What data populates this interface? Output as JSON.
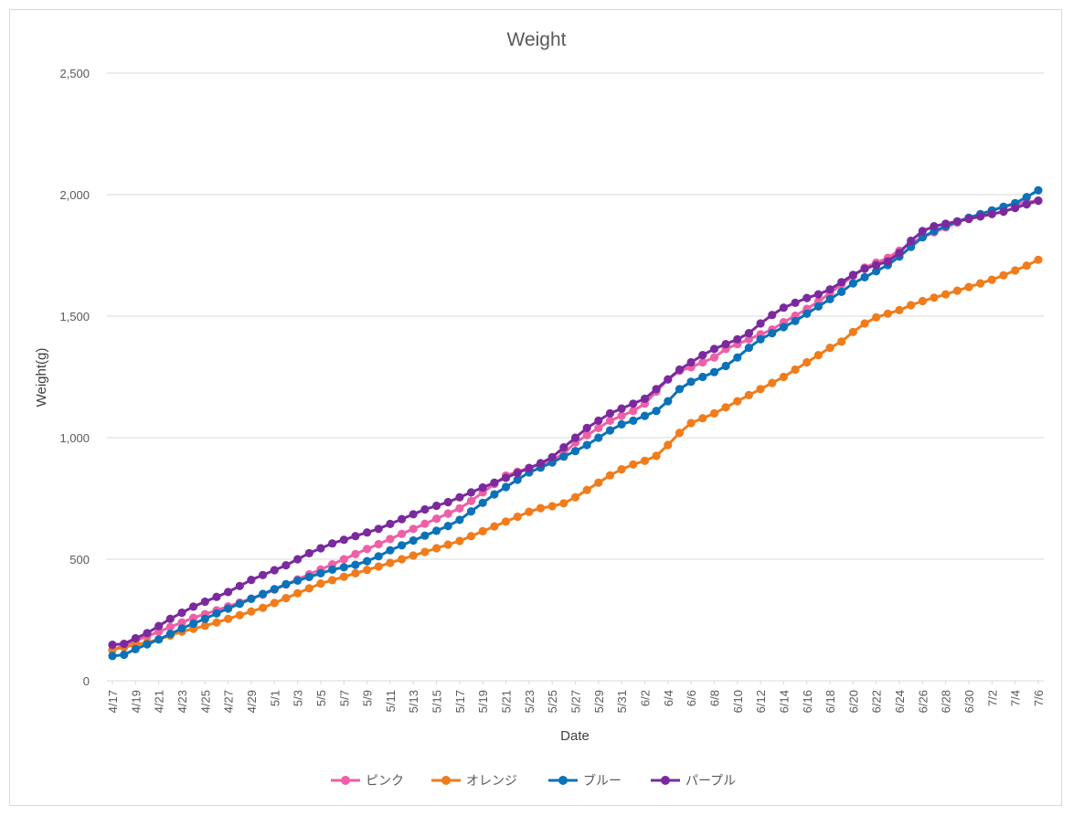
{
  "chart_data": {
    "type": "line",
    "title": "Weight",
    "xlabel": "Date",
    "ylabel": "Weight(g)",
    "ylim": [
      0,
      2500
    ],
    "yticks": [
      0,
      500,
      1000,
      1500,
      2000,
      2500
    ],
    "ytick_labels": [
      "0",
      "500",
      "1,000",
      "1,500",
      "2,000",
      "2,500"
    ],
    "grid": "horizontal",
    "legend_position": "bottom",
    "x": [
      "4/17",
      "4/18",
      "4/19",
      "4/20",
      "4/21",
      "4/22",
      "4/23",
      "4/24",
      "4/25",
      "4/26",
      "4/27",
      "4/28",
      "4/29",
      "4/30",
      "5/1",
      "5/2",
      "5/3",
      "5/4",
      "5/5",
      "5/6",
      "5/7",
      "5/8",
      "5/9",
      "5/10",
      "5/11",
      "5/12",
      "5/13",
      "5/14",
      "5/15",
      "5/16",
      "5/17",
      "5/18",
      "5/19",
      "5/20",
      "5/21",
      "5/22",
      "5/23",
      "5/24",
      "5/25",
      "5/26",
      "5/27",
      "5/28",
      "5/29",
      "5/30",
      "5/31",
      "6/1",
      "6/2",
      "6/3",
      "6/4",
      "6/5",
      "6/6",
      "6/7",
      "6/8",
      "6/9",
      "6/10",
      "6/11",
      "6/12",
      "6/13",
      "6/14",
      "6/15",
      "6/16",
      "6/17",
      "6/18",
      "6/19",
      "6/20",
      "6/21",
      "6/22",
      "6/23",
      "6/24",
      "6/25",
      "6/26",
      "6/27",
      "6/28",
      "6/29",
      "6/30",
      "7/1",
      "7/2",
      "7/3",
      "7/4",
      "7/5",
      "7/6"
    ],
    "x_tick_labels": [
      "4/17",
      "4/19",
      "4/21",
      "4/23",
      "4/25",
      "4/27",
      "4/29",
      "5/1",
      "5/3",
      "5/5",
      "5/7",
      "5/9",
      "5/11",
      "5/13",
      "5/15",
      "5/17",
      "5/19",
      "5/21",
      "5/23",
      "5/25",
      "5/27",
      "5/29",
      "5/31",
      "6/2",
      "6/4",
      "6/6",
      "6/8",
      "6/10",
      "6/12",
      "6/14",
      "6/16",
      "6/18",
      "6/20",
      "6/22",
      "6/24",
      "6/26",
      "6/28",
      "6/30",
      "7/2",
      "7/4",
      "7/6"
    ],
    "series": [
      {
        "name": "ピンク",
        "color": "#ee5fa7",
        "values": [
          126,
          145,
          164,
          183,
          202,
          221,
          240,
          259,
          274,
          290,
          306,
          322,
          338,
          354,
          375,
          396,
          417,
          438,
          458,
          479,
          500,
          521,
          542,
          562,
          583,
          604,
          625,
          646,
          667,
          688,
          709,
          740,
          775,
          809,
          844,
          860,
          876,
          891,
          907,
          935,
          980,
          1010,
          1040,
          1070,
          1090,
          1110,
          1140,
          1190,
          1240,
          1275,
          1290,
          1310,
          1330,
          1365,
          1385,
          1405,
          1425,
          1445,
          1475,
          1502,
          1530,
          1560,
          1595,
          1630,
          1665,
          1700,
          1720,
          1740,
          1770,
          1800,
          1825,
          1845,
          1865,
          1885,
          1905,
          1920,
          1935,
          1950,
          1960,
          1970,
          1975
        ]
      },
      {
        "name": "オレンジ",
        "color": "#f07c1b",
        "values": [
          128,
          138,
          148,
          158,
          170,
          186,
          202,
          214,
          226,
          240,
          255,
          270,
          285,
          300,
          320,
          340,
          360,
          380,
          400,
          414,
          428,
          442,
          456,
          470,
          485,
          500,
          515,
          530,
          545,
          560,
          575,
          595,
          615,
          635,
          655,
          675,
          695,
          710,
          718,
          730,
          755,
          785,
          815,
          845,
          870,
          890,
          905,
          925,
          970,
          1020,
          1060,
          1080,
          1100,
          1125,
          1150,
          1175,
          1200,
          1225,
          1250,
          1280,
          1310,
          1340,
          1370,
          1395,
          1435,
          1470,
          1495,
          1510,
          1525,
          1545,
          1562,
          1576,
          1590,
          1605,
          1620,
          1635,
          1650,
          1668,
          1688,
          1708,
          1732
        ]
      },
      {
        "name": "ブルー",
        "color": "#0b72b9",
        "values": [
          102,
          107,
          130,
          150,
          170,
          193,
          215,
          235,
          255,
          277,
          297,
          317,
          337,
          357,
          377,
          397,
          412,
          427,
          442,
          457,
          467,
          477,
          492,
          512,
          537,
          557,
          577,
          597,
          617,
          637,
          662,
          697,
          732,
          767,
          797,
          827,
          857,
          877,
          898,
          922,
          945,
          970,
          1000,
          1030,
          1055,
          1070,
          1090,
          1110,
          1150,
          1200,
          1230,
          1250,
          1270,
          1295,
          1330,
          1370,
          1405,
          1430,
          1455,
          1480,
          1510,
          1540,
          1570,
          1600,
          1635,
          1660,
          1685,
          1710,
          1745,
          1785,
          1825,
          1850,
          1870,
          1890,
          1905,
          1920,
          1935,
          1950,
          1965,
          1990,
          2018
        ]
      },
      {
        "name": "パープル",
        "color": "#7b2a9e",
        "values": [
          148,
          152,
          175,
          196,
          225,
          255,
          280,
          305,
          325,
          345,
          365,
          390,
          415,
          435,
          455,
          475,
          500,
          525,
          545,
          565,
          580,
          595,
          610,
          625,
          645,
          665,
          685,
          705,
          720,
          735,
          755,
          775,
          795,
          815,
          835,
          855,
          875,
          895,
          920,
          960,
          1000,
          1040,
          1070,
          1100,
          1120,
          1140,
          1160,
          1200,
          1240,
          1280,
          1310,
          1340,
          1365,
          1385,
          1405,
          1430,
          1470,
          1505,
          1535,
          1555,
          1575,
          1590,
          1610,
          1640,
          1670,
          1695,
          1710,
          1725,
          1760,
          1810,
          1850,
          1870,
          1880,
          1890,
          1900,
          1910,
          1920,
          1930,
          1945,
          1960,
          1975
        ]
      }
    ]
  }
}
